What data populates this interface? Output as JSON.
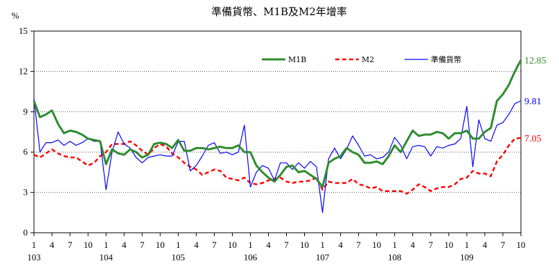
{
  "chart_data": {
    "type": "line",
    "title": "準備貨幣、M1B及M2年增率",
    "ylabel": "%",
    "ylim": [
      0,
      15
    ],
    "yticks": [
      0,
      3,
      6,
      9,
      12,
      15
    ],
    "grid": "horizontal dotted",
    "legend_placement": "top-right",
    "x_month_ticks": [
      "1",
      "4",
      "7",
      "10",
      "1",
      "4",
      "7",
      "10",
      "1",
      "4",
      "7",
      "10",
      "1",
      "4",
      "7",
      "10",
      "1",
      "4",
      "7",
      "10",
      "1",
      "4",
      "7",
      "10",
      "1",
      "4",
      "7",
      "10"
    ],
    "x_year_labels": [
      "103",
      "104",
      "105",
      "106",
      "107",
      "108",
      "109"
    ],
    "x": [
      "103/1",
      "103/2",
      "103/3",
      "103/4",
      "103/5",
      "103/6",
      "103/7",
      "103/8",
      "103/9",
      "103/10",
      "103/11",
      "103/12",
      "104/1",
      "104/2",
      "104/3",
      "104/4",
      "104/5",
      "104/6",
      "104/7",
      "104/8",
      "104/9",
      "104/10",
      "104/11",
      "104/12",
      "105/1",
      "105/2",
      "105/3",
      "105/4",
      "105/5",
      "105/6",
      "105/7",
      "105/8",
      "105/9",
      "105/10",
      "105/11",
      "105/12",
      "106/1",
      "106/2",
      "106/3",
      "106/4",
      "106/5",
      "106/6",
      "106/7",
      "106/8",
      "106/9",
      "106/10",
      "106/11",
      "106/12",
      "107/1",
      "107/2",
      "107/3",
      "107/4",
      "107/5",
      "107/6",
      "107/7",
      "107/8",
      "107/9",
      "107/10",
      "107/11",
      "107/12",
      "108/1",
      "108/2",
      "108/3",
      "108/4",
      "108/5",
      "108/6",
      "108/7",
      "108/8",
      "108/9",
      "108/10",
      "108/11",
      "108/12",
      "109/1",
      "109/2",
      "109/3",
      "109/4",
      "109/5",
      "109/6",
      "109/7",
      "109/8",
      "109/9",
      "109/10"
    ],
    "series": [
      {
        "name": "M1B",
        "color": "#2e8b2e",
        "style": "solid-thick",
        "end_label": "12.85",
        "values": [
          9.8,
          8.6,
          8.8,
          9.1,
          8.1,
          7.4,
          7.6,
          7.5,
          7.3,
          7.0,
          6.9,
          6.8,
          5.1,
          6.2,
          5.9,
          5.8,
          6.2,
          6.0,
          5.6,
          5.8,
          6.6,
          6.7,
          6.6,
          6.3,
          6.9,
          6.1,
          6.1,
          6.3,
          6.3,
          6.2,
          6.3,
          6.4,
          6.3,
          6.3,
          6.5,
          6.0,
          6.0,
          5.0,
          4.5,
          4.1,
          3.8,
          4.3,
          4.9,
          5.0,
          4.5,
          4.6,
          4.3,
          4.0,
          3.4,
          5.2,
          5.5,
          5.7,
          6.3,
          6.0,
          5.8,
          5.2,
          5.2,
          5.3,
          5.1,
          5.7,
          6.5,
          6.0,
          6.8,
          7.6,
          7.2,
          7.3,
          7.3,
          7.5,
          7.4,
          7.0,
          7.4,
          7.4,
          7.6,
          7.0,
          7.0,
          7.5,
          7.8,
          9.8,
          10.3,
          11.0,
          12.0,
          12.85
        ]
      },
      {
        "name": "M2",
        "color": "#ff0000",
        "style": "dashed",
        "end_label": "7.05",
        "values": [
          5.8,
          5.6,
          5.9,
          6.2,
          5.9,
          5.7,
          5.6,
          5.6,
          5.3,
          5.0,
          5.2,
          5.7,
          6.0,
          6.6,
          6.6,
          6.6,
          6.8,
          6.5,
          6.1,
          5.8,
          6.3,
          6.6,
          6.4,
          5.9,
          5.6,
          5.2,
          4.9,
          4.7,
          4.3,
          4.5,
          4.7,
          4.6,
          4.1,
          4.0,
          3.9,
          4.1,
          3.7,
          3.6,
          3.7,
          3.9,
          4.0,
          4.1,
          3.8,
          3.7,
          3.8,
          3.8,
          3.9,
          4.1,
          3.2,
          3.8,
          3.7,
          3.7,
          3.7,
          4.0,
          3.6,
          3.5,
          3.3,
          3.4,
          3.1,
          3.1,
          3.1,
          3.1,
          2.9,
          3.2,
          3.6,
          3.4,
          3.1,
          3.3,
          3.4,
          3.4,
          3.6,
          4.0,
          4.1,
          4.6,
          4.4,
          4.4,
          4.2,
          5.3,
          5.8,
          6.5,
          7.0,
          7.05
        ]
      },
      {
        "name": "準備貨幣",
        "color": "#0000ff",
        "style": "solid-thin",
        "end_label": "9.81",
        "values": [
          10.0,
          6.0,
          6.7,
          6.7,
          6.9,
          6.5,
          6.8,
          6.5,
          6.7,
          7.0,
          6.8,
          6.8,
          3.2,
          6.0,
          7.5,
          6.6,
          6.3,
          5.6,
          5.2,
          5.6,
          5.7,
          5.8,
          5.7,
          5.7,
          6.8,
          6.8,
          4.6,
          5.0,
          5.7,
          6.5,
          6.7,
          5.9,
          6.0,
          5.8,
          6.0,
          8.0,
          3.4,
          4.5,
          5.0,
          4.8,
          3.9,
          5.2,
          5.2,
          4.7,
          5.2,
          4.8,
          5.3,
          4.9,
          1.5,
          5.5,
          6.3,
          5.5,
          6.2,
          7.2,
          6.5,
          5.7,
          5.8,
          5.5,
          5.6,
          6.0,
          7.1,
          6.5,
          5.5,
          6.4,
          6.5,
          6.4,
          5.7,
          6.4,
          6.3,
          6.5,
          6.6,
          7.0,
          9.4,
          4.9,
          8.4,
          7.0,
          6.8,
          8.0,
          8.2,
          8.8,
          9.6,
          9.81
        ]
      }
    ]
  }
}
